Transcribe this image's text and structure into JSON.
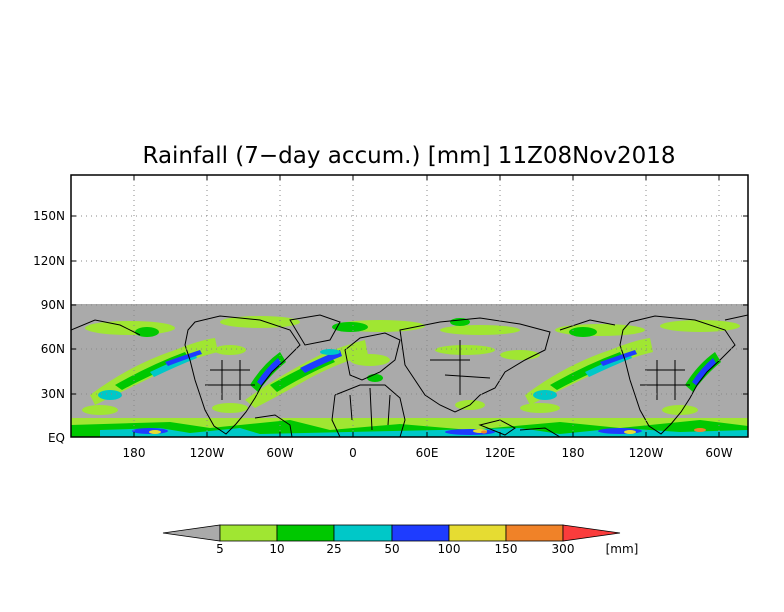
{
  "title": "Rainfall (7−day accum.) [mm] 11Z08Nov2018",
  "map": {
    "lat_labels": [
      "150N",
      "120N",
      "90N",
      "60N",
      "30N",
      "EQ"
    ],
    "lon_labels": [
      "180",
      "120W",
      "60W",
      "0",
      "60E",
      "120E",
      "180",
      "120W",
      "60W"
    ],
    "background_color": "#aaaaaa",
    "coastline_color": "#000000"
  },
  "colorbar": {
    "labels": [
      "5",
      "10",
      "25",
      "50",
      "100",
      "150",
      "300"
    ],
    "unit": "[mm]",
    "colors": [
      "#aaaaaa",
      "#a0e632",
      "#00c800",
      "#00c8c8",
      "#1e3cff",
      "#e6dc32",
      "#f08228",
      "#fa3c3c"
    ]
  }
}
